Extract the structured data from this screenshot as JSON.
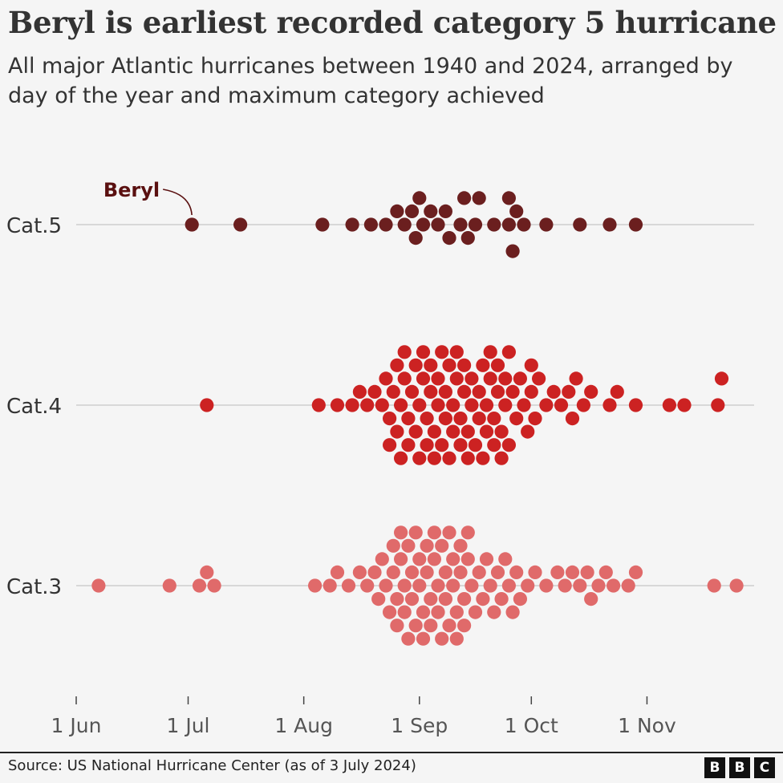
{
  "title": "Beryl is earliest recorded category 5 hurricane",
  "subtitle": "All major Atlantic hurricanes between 1940 and 2024, arranged by day of the year and maximum category achieved",
  "source": "Source: US National Hurricane Center (as of 3 July 2024)",
  "logo": [
    "B",
    "B",
    "C"
  ],
  "colors": {
    "cat5": "#6b1f1f",
    "cat4": "#cc2222",
    "cat3": "#e06a6a",
    "axis": "#c8c8c8",
    "annotation": "#5a1010",
    "tick_text": "#555555"
  },
  "chart_data": {
    "type": "scatter",
    "subtype": "beeswarm",
    "x_axis": {
      "ticks": [
        "1 Jun",
        "1 Jul",
        "1 Aug",
        "1 Sep",
        "1 Oct",
        "1 Nov"
      ],
      "tick_days": [
        152,
        182,
        213,
        244,
        274,
        305
      ],
      "range_days": [
        152,
        335
      ]
    },
    "categories": [
      "Cat.5",
      "Cat.4",
      "Cat.3"
    ],
    "annotation": {
      "label": "Beryl",
      "category": "Cat.5",
      "date": "2 Jul"
    },
    "series": [
      {
        "name": "Cat.5",
        "color": "#6b1f1f",
        "days": [
          183,
          196,
          218,
          226,
          231,
          235,
          238,
          240,
          242,
          243,
          244,
          245,
          247,
          249,
          251,
          252,
          255,
          256,
          257,
          259,
          260,
          264,
          268,
          268,
          269,
          270,
          272,
          278,
          287,
          295,
          302
        ]
      },
      {
        "name": "Cat.4",
        "color": "#cc2222",
        "days": [
          187,
          217,
          222,
          226,
          228,
          230,
          232,
          234,
          235,
          236,
          236,
          237,
          238,
          238,
          239,
          239,
          240,
          240,
          241,
          241,
          242,
          243,
          243,
          244,
          244,
          245,
          245,
          246,
          246,
          247,
          247,
          248,
          248,
          249,
          249,
          250,
          250,
          251,
          251,
          252,
          252,
          253,
          253,
          254,
          254,
          255,
          255,
          256,
          256,
          257,
          257,
          258,
          258,
          259,
          260,
          260,
          261,
          261,
          262,
          262,
          263,
          263,
          264,
          264,
          265,
          265,
          266,
          266,
          267,
          267,
          268,
          268,
          269,
          270,
          271,
          272,
          273,
          274,
          274,
          275,
          276,
          278,
          280,
          282,
          284,
          285,
          286,
          288,
          290,
          295,
          297,
          302,
          311,
          315,
          324,
          325
        ]
      },
      {
        "name": "Cat.3",
        "color": "#e06a6a",
        "days": [
          158,
          177,
          185,
          187,
          189,
          216,
          220,
          222,
          225,
          228,
          230,
          232,
          233,
          234,
          235,
          236,
          237,
          237,
          238,
          238,
          239,
          239,
          240,
          240,
          241,
          241,
          242,
          242,
          243,
          243,
          244,
          244,
          245,
          245,
          246,
          246,
          247,
          247,
          248,
          248,
          249,
          249,
          250,
          250,
          251,
          251,
          252,
          252,
          253,
          253,
          254,
          254,
          255,
          255,
          256,
          256,
          257,
          257,
          258,
          259,
          260,
          261,
          262,
          263,
          264,
          265,
          266,
          267,
          268,
          269,
          270,
          271,
          273,
          275,
          278,
          281,
          283,
          285,
          287,
          289,
          290,
          292,
          294,
          296,
          300,
          302,
          323,
          329
        ]
      }
    ]
  }
}
